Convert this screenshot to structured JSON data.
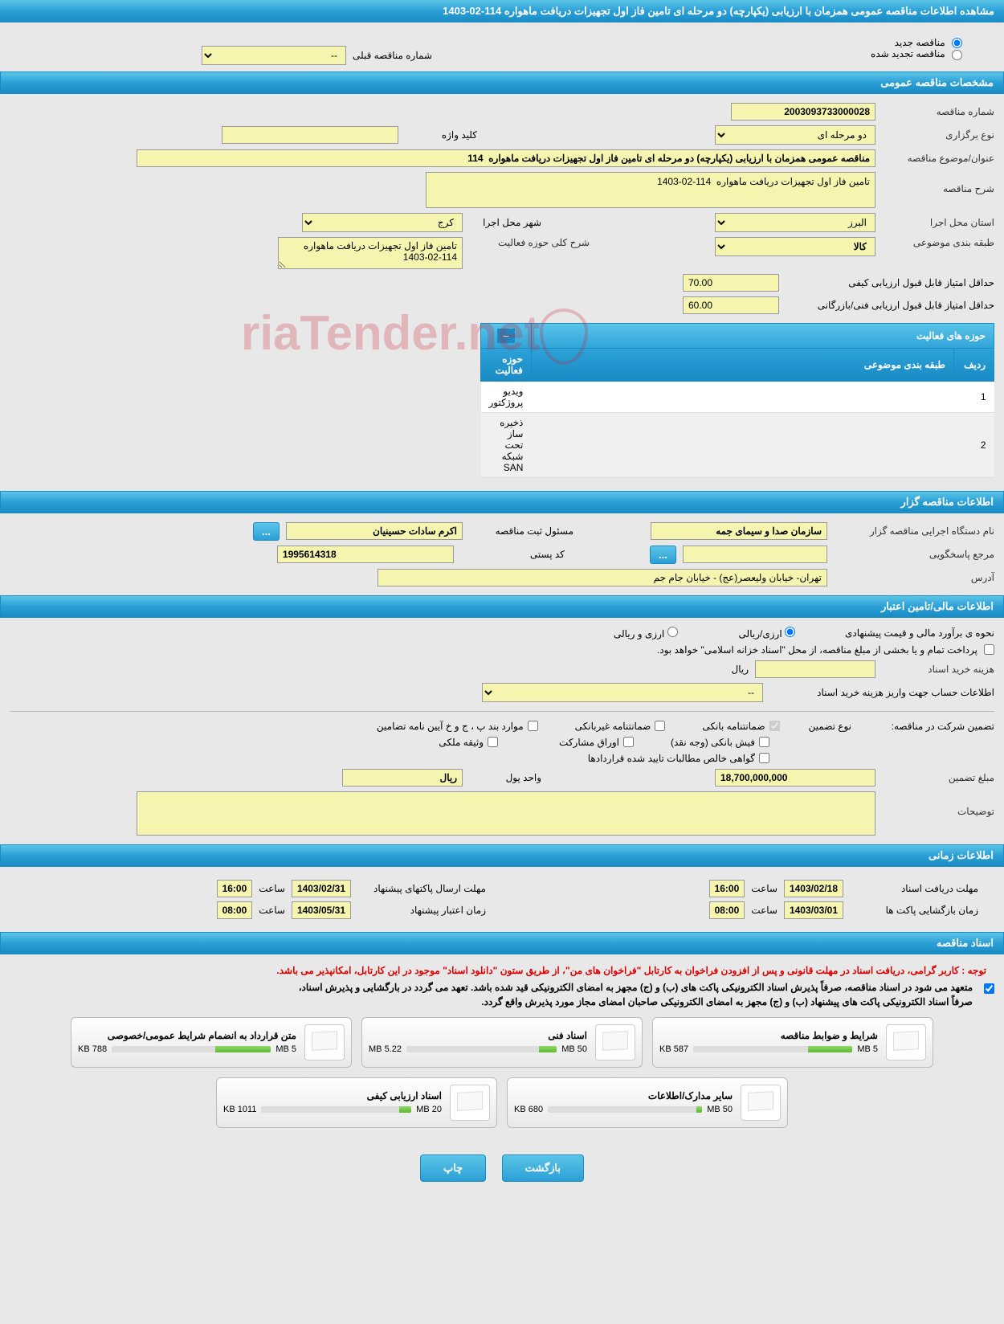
{
  "page": {
    "title": "مشاهده اطلاعات مناقصه عمومی همزمان با ارزیابی (یکپارچه) دو مرحله ای تامین فاز اول تجهیزات دریافت ماهواره 114-02-1403"
  },
  "radios": {
    "new_tender": "مناقصه جدید",
    "renewed_tender": "مناقصه تجدید شده",
    "prev_tender_label": "شماره مناقصه قبلی",
    "prev_tender_value": "--"
  },
  "sections": {
    "general": "مشخصات مناقصه عمومی",
    "activities": "حوزه های فعالیت",
    "organizer": "اطلاعات مناقصه گزار",
    "financial": "اطلاعات مالی/تامین اعتبار",
    "timing": "اطلاعات زمانی",
    "documents": "اسناد مناقصه"
  },
  "general": {
    "tender_number_label": "شماره مناقصه",
    "tender_number": "2003093733000028",
    "type_label": "نوع برگزاری",
    "type_value": "دو مرحله ای",
    "keyword_label": "کلید واژه",
    "keyword_value": "",
    "title_label": "عنوان/موضوع مناقصه",
    "title_value": "مناقصه عمومی همزمان با ارزیابی (یکپارچه) دو مرحله ای تامین فاز اول تجهیزات دریافت ماهواره  114",
    "desc_label": "شرح مناقصه",
    "desc_value": "تامین فاز اول تجهیزات دریافت ماهواره  114-02-1403",
    "province_label": "استان محل اجرا",
    "province_value": "البرز",
    "city_label": "شهر محل اجرا",
    "city_value": "کرج",
    "subject_class_label": "طبقه بندی موضوعی",
    "subject_class_value": "کالا",
    "activity_general_label": "شرح کلی حوزه فعالیت",
    "activity_general_value": "تامین فاز اول تجهیزات دریافت ماهواره  114-02-1403",
    "min_quality_label": "حداقل امتیاز قابل قبول ارزیابی کیفی",
    "min_quality_value": "70.00",
    "min_tech_label": "حداقل امتیاز قابل قبول ارزیابی فنی/بازرگانی",
    "min_tech_value": "60.00"
  },
  "activity_table": {
    "col_row": "ردیف",
    "col_class": "طبقه بندی موضوعی",
    "col_activity": "حوزه فعالیت",
    "rows": [
      {
        "n": "1",
        "class": "",
        "activity": "ویدیو پروژکتور"
      },
      {
        "n": "2",
        "class": "",
        "activity": "ذخیره ساز تحت شبکه SAN"
      }
    ]
  },
  "organizer": {
    "org_label": "نام دستگاه اجرایی مناقصه گزار",
    "org_value": "سازمان صدا و سیمای جمه",
    "registrar_label": "مسئول ثبت مناقصه",
    "registrar_value": "اکرم سادات حسینیان",
    "responder_label": "مرجع پاسخگویی",
    "responder_value": "",
    "postal_label": "کد پستی",
    "postal_value": "1995614318",
    "address_label": "آدرس",
    "address_value": "تهران- خیابان ولیعصر(عج) - خیابان جام جم"
  },
  "financial": {
    "est_method_label": "نحوه ی برآورد مالی و قیمت پیشنهادی",
    "opt_rial": "ارزی/ریالی",
    "opt_currency": "ارزی و ریالی",
    "treasury_note": "پرداخت تمام و یا بخشی از مبلغ مناقصه، از محل \"اسناد خزانه اسلامی\" خواهد بود.",
    "doc_cost_label": "هزینه خرید اسناد",
    "doc_cost_unit": "ریال",
    "doc_cost_value": "",
    "account_info_label": "اطلاعات حساب جهت واریز هزینه خرید اسناد",
    "account_info_value": "--",
    "guarantee_title_label": "تضمین شرکت در مناقصه:",
    "guarantee_type_label": "نوع تضمین",
    "chk_bank_guarantee": "ضمانتنامه بانکی",
    "chk_nonbank_guarantee": "ضمانتنامه غیربانکی",
    "chk_bylaw": "موارد بند پ ، ج و خ آیین نامه تضامین",
    "chk_bank_receipt": "فیش بانکی (وجه نقد)",
    "chk_bonds": "اوراق مشارکت",
    "chk_property": "وثیقه ملکی",
    "chk_net_claims": "گواهی خالص مطالبات تایید شده قراردادها",
    "guarantee_amount_label": "مبلغ تضمین",
    "guarantee_amount_value": "18,700,000,000",
    "currency_unit_label": "واحد پول",
    "currency_unit_value": "ریال",
    "notes_label": "توضیحات",
    "notes_value": ""
  },
  "timing": {
    "doc_receive_deadline_label": "مهلت دریافت اسناد",
    "doc_receive_deadline_date": "1403/02/18",
    "doc_receive_deadline_time_label": "ساعت",
    "doc_receive_deadline_time": "16:00",
    "proposal_send_deadline_label": "مهلت ارسال پاکتهای پیشنهاد",
    "proposal_send_deadline_date": "1403/02/31",
    "proposal_send_deadline_time": "16:00",
    "opening_time_label": "زمان بازگشایی پاکت ها",
    "opening_date": "1403/03/01",
    "opening_time": "08:00",
    "validity_label": "زمان اعتبار پیشنهاد",
    "validity_date": "1403/05/31",
    "validity_time": "08:00"
  },
  "notices": {
    "line1": "توجه : کاربر گرامی، دریافت اسناد در مهلت قانونی و پس از افزودن فراخوان به کارتابل \"فراخوان های من\"، از طریق ستون \"دانلود اسناد\" موجود در این کارتابل، امکانپذیر می باشد.",
    "line2": "متعهد می شود در اسناد مناقصه، صرفاً پذیرش اسناد الکترونیکی پاکت های (ب) و (ج) مجهز به امضای الکترونیکی قید شده باشد. تعهد می گردد در بارگشایی و پذیرش اسناد،",
    "line3": "صرفاً اسناد الکترونیکی پاکت های پیشنهاد (ب) و (ج) مجهز به امضای الکترونیکی صاحبان امضای مجاز مورد پذیرش واقع گردد."
  },
  "docs": [
    {
      "title": "شرایط و ضوابط مناقصه",
      "size": "587 KB",
      "quota": "5 MB",
      "fill_pct": 28
    },
    {
      "title": "اسناد فنی",
      "size": "5.22 MB",
      "quota": "50 MB",
      "fill_pct": 12
    },
    {
      "title": "متن قرارداد به انضمام شرایط عمومی/خصوصی",
      "size": "788 KB",
      "quota": "5 MB",
      "fill_pct": 35
    },
    {
      "title": "سایر مدارک/اطلاعات",
      "size": "680 KB",
      "quota": "50 MB",
      "fill_pct": 4
    },
    {
      "title": "اسناد ارزیابی کیفی",
      "size": "1011 KB",
      "quota": "20 MB",
      "fill_pct": 8
    }
  ],
  "buttons": {
    "back": "بازگشت",
    "print": "چاپ",
    "ellipsis": "..."
  },
  "colors": {
    "header_grad_top": "#5cc5e8",
    "header_grad_bottom": "#1a8bc4",
    "page_bg": "#e8e8e8",
    "field_bg": "#f5f5b0",
    "notice_red": "#d00",
    "doc_bar_fill": "#5cb82e"
  }
}
